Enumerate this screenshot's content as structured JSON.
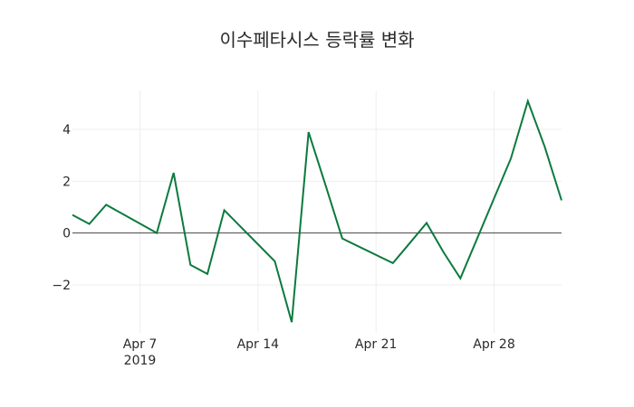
{
  "chart_data": {
    "type": "line",
    "title": "이수페타시스 등락률 변화",
    "xlabel": "",
    "ylabel": "",
    "x": [
      "2019-04-03",
      "2019-04-04",
      "2019-04-05",
      "2019-04-08",
      "2019-04-09",
      "2019-04-10",
      "2019-04-11",
      "2019-04-12",
      "2019-04-15",
      "2019-04-16",
      "2019-04-17",
      "2019-04-18",
      "2019-04-19",
      "2019-04-22",
      "2019-04-23",
      "2019-04-24",
      "2019-04-25",
      "2019-04-26",
      "2019-04-29",
      "2019-04-30",
      "2019-05-01",
      "2019-05-02"
    ],
    "series": [
      {
        "name": "등락률",
        "color": "#0b7a3e",
        "values": [
          0.7,
          0.35,
          1.09,
          0.0,
          2.32,
          -1.23,
          -1.58,
          0.88,
          -1.09,
          -3.44,
          3.89,
          1.86,
          -0.21,
          -1.16,
          -0.39,
          0.39,
          -0.74,
          -1.75,
          2.88,
          5.09,
          3.33,
          1.26
        ]
      }
    ],
    "ylim": [
      -3.85,
      5.5
    ],
    "xlim": [
      "2019-04-03",
      "2019-05-02"
    ],
    "yticks": [
      -2,
      0,
      2,
      4
    ],
    "ytick_labels": [
      "−2",
      "0",
      "2",
      "4"
    ],
    "xticks": [
      "2019-04-07",
      "2019-04-14",
      "2019-04-21",
      "2019-04-28"
    ],
    "xtick_labels": [
      "Apr 7",
      "Apr 14",
      "Apr 21",
      "Apr 28"
    ],
    "xtick_year_label": "2019",
    "grid": true,
    "zero_line": true,
    "legend": false
  }
}
